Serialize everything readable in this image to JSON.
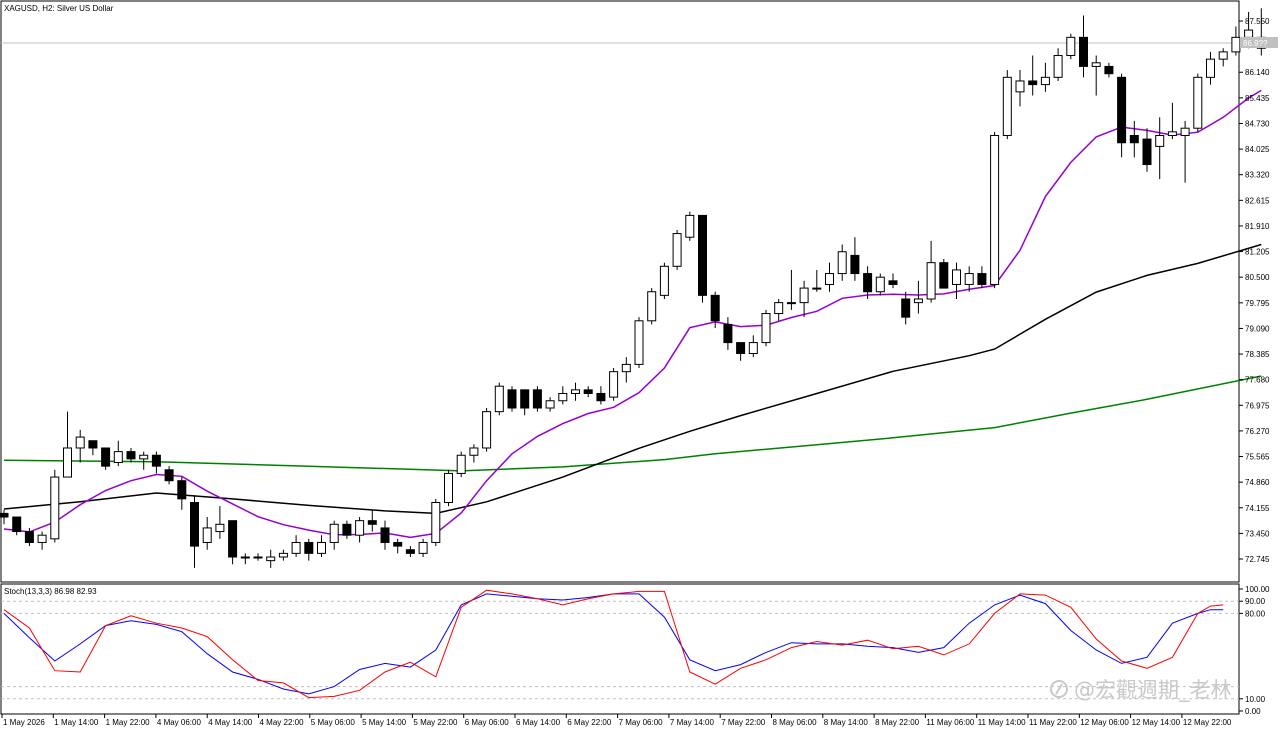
{
  "header": {
    "symbol_label": "XAGUSD, H2:  Silver US Dollar",
    "current_price_label": "86.9??"
  },
  "indicator": {
    "label": "Stoch(13,3,3) 86.98 82.93",
    "levels": [
      "100.00",
      "90.00",
      "80.00",
      "10.00",
      "0.00"
    ]
  },
  "watermark": "@宏觀週期_老林",
  "colors": {
    "bull_body": "#ffffff",
    "bear_body": "#000000",
    "ma_fast": "#9400d3",
    "ma_mid": "#000000",
    "ma_slow": "#008000",
    "stoch_main": "#ff0000",
    "stoch_signal": "#0000ff"
  },
  "chart_data": {
    "type": "candlestick",
    "price_axis": {
      "ticks": [
        "87.550",
        "86.140",
        "85.435",
        "84.730",
        "84.025",
        "83.320",
        "82.615",
        "81.910",
        "81.205",
        "80.500",
        "79.795",
        "79.090",
        "78.385",
        "77.680",
        "76.975",
        "76.270",
        "75.565",
        "74.860",
        "74.155",
        "73.450",
        "72.745"
      ]
    },
    "time_axis": {
      "ticks": [
        "1 May 2026",
        "1 May 14:00",
        "1 May 22:00",
        "4 May 06:00",
        "4 May 14:00",
        "4 May 22:00",
        "5 May 06:00",
        "5 May 14:00",
        "5 May 22:00",
        "6 May 06:00",
        "6 May 14:00",
        "6 May 22:00",
        "7 May 06:00",
        "7 May 14:00",
        "7 May 22:00",
        "8 May 06:00",
        "8 May 14:00",
        "8 May 22:00",
        "11 May 06:00",
        "11 May 14:00",
        "11 May 22:00",
        "12 May 06:00",
        "12 May 14:00",
        "12 May 22:00"
      ]
    },
    "candles": [
      [
        74.0,
        74.1,
        73.7,
        73.9
      ],
      [
        73.9,
        73.9,
        73.4,
        73.5
      ],
      [
        73.5,
        73.6,
        73.1,
        73.2
      ],
      [
        73.2,
        73.5,
        73.0,
        73.4
      ],
      [
        73.3,
        75.2,
        73.2,
        75.0
      ],
      [
        75.0,
        76.8,
        75.0,
        75.8
      ],
      [
        75.8,
        76.3,
        75.4,
        76.1
      ],
      [
        76.0,
        76.0,
        75.6,
        75.8
      ],
      [
        75.8,
        75.8,
        75.2,
        75.3
      ],
      [
        75.4,
        76.0,
        75.3,
        75.7
      ],
      [
        75.7,
        75.8,
        75.4,
        75.5
      ],
      [
        75.5,
        75.7,
        75.2,
        75.6
      ],
      [
        75.6,
        75.7,
        75.1,
        75.3
      ],
      [
        75.2,
        75.3,
        74.8,
        74.9
      ],
      [
        74.9,
        75.0,
        74.1,
        74.4
      ],
      [
        74.3,
        74.5,
        72.5,
        73.1
      ],
      [
        73.2,
        73.9,
        73.0,
        73.6
      ],
      [
        73.5,
        74.2,
        73.3,
        73.7
      ],
      [
        73.8,
        73.8,
        72.6,
        72.8
      ],
      [
        72.8,
        72.9,
        72.6,
        72.8
      ],
      [
        72.8,
        72.9,
        72.7,
        72.8
      ],
      [
        72.7,
        73.0,
        72.5,
        72.8
      ],
      [
        72.8,
        73.0,
        72.7,
        72.9
      ],
      [
        72.9,
        73.4,
        72.8,
        73.2
      ],
      [
        73.2,
        73.3,
        72.7,
        72.9
      ],
      [
        72.9,
        73.4,
        72.8,
        73.2
      ],
      [
        73.2,
        73.8,
        73.0,
        73.7
      ],
      [
        73.7,
        73.8,
        73.3,
        73.4
      ],
      [
        73.4,
        73.9,
        73.2,
        73.8
      ],
      [
        73.8,
        74.1,
        73.5,
        73.7
      ],
      [
        73.6,
        73.8,
        73.0,
        73.2
      ],
      [
        73.2,
        73.3,
        72.9,
        73.1
      ],
      [
        73.0,
        73.1,
        72.8,
        72.9
      ],
      [
        72.9,
        73.3,
        72.8,
        73.2
      ],
      [
        73.2,
        74.4,
        73.1,
        74.3
      ],
      [
        74.3,
        75.2,
        74.2,
        75.1
      ],
      [
        75.1,
        75.7,
        75.0,
        75.6
      ],
      [
        75.6,
        75.9,
        75.4,
        75.8
      ],
      [
        75.8,
        76.9,
        75.7,
        76.8
      ],
      [
        76.8,
        77.6,
        76.7,
        77.5
      ],
      [
        77.4,
        77.5,
        76.8,
        76.9
      ],
      [
        77.4,
        77.4,
        76.7,
        76.9
      ],
      [
        77.4,
        77.5,
        76.8,
        76.9
      ],
      [
        76.9,
        77.2,
        76.8,
        77.1
      ],
      [
        77.1,
        77.5,
        77.0,
        77.3
      ],
      [
        77.3,
        77.6,
        77.1,
        77.4
      ],
      [
        77.4,
        77.5,
        77.2,
        77.3
      ],
      [
        77.3,
        77.5,
        77.0,
        77.1
      ],
      [
        77.2,
        78.0,
        77.1,
        77.9
      ],
      [
        77.9,
        78.3,
        77.6,
        78.1
      ],
      [
        78.1,
        79.4,
        78.0,
        79.3
      ],
      [
        79.3,
        80.2,
        79.2,
        80.1
      ],
      [
        80.0,
        80.9,
        79.9,
        80.8
      ],
      [
        80.8,
        81.8,
        80.7,
        81.7
      ],
      [
        81.6,
        82.3,
        81.5,
        82.2
      ],
      [
        82.2,
        82.2,
        79.8,
        80.0
      ],
      [
        80.0,
        80.1,
        79.1,
        79.3
      ],
      [
        79.2,
        79.4,
        78.5,
        78.7
      ],
      [
        78.7,
        78.7,
        78.2,
        78.4
      ],
      [
        78.4,
        78.9,
        78.3,
        78.7
      ],
      [
        78.7,
        79.6,
        78.6,
        79.5
      ],
      [
        79.5,
        79.9,
        79.3,
        79.8
      ],
      [
        79.8,
        80.7,
        79.6,
        79.8
      ],
      [
        79.8,
        80.4,
        79.4,
        80.2
      ],
      [
        80.2,
        80.7,
        80.1,
        80.2
      ],
      [
        80.3,
        80.9,
        80.1,
        80.6
      ],
      [
        80.6,
        81.4,
        80.4,
        81.2
      ],
      [
        81.1,
        81.6,
        80.4,
        80.6
      ],
      [
        80.6,
        80.8,
        79.9,
        80.1
      ],
      [
        80.1,
        80.6,
        80.0,
        80.5
      ],
      [
        80.4,
        80.6,
        80.2,
        80.3
      ],
      [
        79.9,
        80.1,
        79.2,
        79.4
      ],
      [
        79.8,
        80.4,
        79.5,
        79.9
      ],
      [
        79.9,
        81.5,
        79.8,
        80.9
      ],
      [
        80.9,
        81.0,
        80.2,
        80.2
      ],
      [
        80.3,
        80.9,
        79.9,
        80.7
      ],
      [
        80.3,
        80.8,
        80.1,
        80.6
      ],
      [
        80.6,
        80.8,
        80.2,
        80.3
      ],
      [
        80.3,
        84.5,
        80.2,
        84.4
      ],
      [
        84.4,
        86.2,
        84.3,
        86.0
      ],
      [
        85.6,
        86.2,
        85.2,
        85.9
      ],
      [
        85.9,
        86.6,
        85.5,
        85.8
      ],
      [
        85.8,
        86.4,
        85.6,
        86.0
      ],
      [
        86.0,
        86.8,
        85.9,
        86.6
      ],
      [
        86.6,
        87.2,
        86.5,
        87.1
      ],
      [
        87.1,
        87.7,
        86.0,
        86.3
      ],
      [
        86.3,
        86.6,
        85.5,
        86.4
      ],
      [
        86.3,
        86.4,
        86.0,
        86.1
      ],
      [
        86.0,
        86.1,
        83.8,
        84.2
      ],
      [
        84.4,
        84.8,
        83.8,
        84.2
      ],
      [
        84.3,
        84.6,
        83.4,
        83.6
      ],
      [
        84.1,
        84.9,
        83.2,
        84.4
      ],
      [
        84.4,
        85.3,
        84.3,
        84.5
      ],
      [
        84.4,
        84.8,
        83.1,
        84.6
      ],
      [
        84.6,
        86.1,
        84.5,
        86.0
      ],
      [
        86.0,
        86.7,
        85.8,
        86.5
      ],
      [
        86.5,
        86.8,
        86.3,
        86.7
      ],
      [
        86.7,
        87.4,
        86.6,
        87.1
      ],
      [
        87.1,
        87.8,
        86.8,
        87.3
      ],
      [
        87.1,
        87.9,
        86.6,
        86.8
      ]
    ],
    "ma_fast": [
      [
        0,
        73.57
      ],
      [
        2,
        73.49
      ],
      [
        4,
        73.76
      ],
      [
        6,
        74.24
      ],
      [
        8,
        74.63
      ],
      [
        10,
        74.9
      ],
      [
        12,
        75.07
      ],
      [
        14,
        75.02
      ],
      [
        16,
        74.61
      ],
      [
        18,
        74.26
      ],
      [
        20,
        73.91
      ],
      [
        22,
        73.69
      ],
      [
        24,
        73.54
      ],
      [
        26,
        73.41
      ],
      [
        28,
        73.42
      ],
      [
        30,
        73.46
      ],
      [
        32,
        73.34
      ],
      [
        34,
        73.45
      ],
      [
        36,
        74.01
      ],
      [
        38,
        74.9
      ],
      [
        40,
        75.64
      ],
      [
        42,
        76.12
      ],
      [
        44,
        76.47
      ],
      [
        46,
        76.75
      ],
      [
        48,
        76.92
      ],
      [
        50,
        77.32
      ],
      [
        52,
        78.0
      ],
      [
        54,
        79.11
      ],
      [
        56,
        79.27
      ],
      [
        58,
        79.14
      ],
      [
        60,
        79.18
      ],
      [
        62,
        79.39
      ],
      [
        64,
        79.56
      ],
      [
        66,
        79.92
      ],
      [
        68,
        80.01
      ],
      [
        70,
        80.03
      ],
      [
        72,
        80.01
      ],
      [
        74,
        80.04
      ],
      [
        76,
        80.17
      ],
      [
        78,
        80.27
      ],
      [
        80,
        81.24
      ],
      [
        82,
        82.72
      ],
      [
        84,
        83.66
      ],
      [
        86,
        84.36
      ],
      [
        88,
        84.63
      ],
      [
        90,
        84.54
      ],
      [
        92,
        84.41
      ],
      [
        94,
        84.49
      ],
      [
        96,
        84.9
      ],
      [
        98,
        85.43
      ],
      [
        99,
        85.64
      ]
    ],
    "ma_mid": [
      [
        0,
        74.12
      ],
      [
        6,
        74.32
      ],
      [
        12,
        74.56
      ],
      [
        18,
        74.4
      ],
      [
        24,
        74.22
      ],
      [
        30,
        74.07
      ],
      [
        34,
        74.0
      ],
      [
        38,
        74.32
      ],
      [
        44,
        75.0
      ],
      [
        50,
        75.79
      ],
      [
        54,
        76.26
      ],
      [
        58,
        76.69
      ],
      [
        64,
        77.3
      ],
      [
        70,
        77.91
      ],
      [
        76,
        78.34
      ],
      [
        78,
        78.52
      ],
      [
        82,
        79.34
      ],
      [
        86,
        80.09
      ],
      [
        90,
        80.55
      ],
      [
        94,
        80.88
      ],
      [
        99,
        81.4
      ]
    ],
    "ma_slow": [
      [
        0,
        75.46
      ],
      [
        12,
        75.42
      ],
      [
        24,
        75.3
      ],
      [
        36,
        75.17
      ],
      [
        44,
        75.28
      ],
      [
        52,
        75.48
      ],
      [
        56,
        75.64
      ],
      [
        64,
        75.89
      ],
      [
        70,
        76.08
      ],
      [
        78,
        76.36
      ],
      [
        84,
        76.76
      ],
      [
        90,
        77.14
      ],
      [
        99,
        77.78
      ]
    ],
    "stoch_main": [
      [
        0,
        83
      ],
      [
        2,
        68
      ],
      [
        4,
        33
      ],
      [
        6,
        32
      ],
      [
        8,
        70
      ],
      [
        10,
        78
      ],
      [
        12,
        72
      ],
      [
        14,
        68
      ],
      [
        16,
        61
      ],
      [
        18,
        42
      ],
      [
        20,
        25
      ],
      [
        22,
        23
      ],
      [
        24,
        11
      ],
      [
        26,
        12
      ],
      [
        28,
        17
      ],
      [
        30,
        32
      ],
      [
        32,
        40
      ],
      [
        34,
        28
      ],
      [
        36,
        85
      ],
      [
        38,
        99
      ],
      [
        40,
        96
      ],
      [
        42,
        92
      ],
      [
        44,
        87
      ],
      [
        46,
        92
      ],
      [
        48,
        96
      ],
      [
        50,
        98
      ],
      [
        52,
        98
      ],
      [
        54,
        32
      ],
      [
        56,
        22
      ],
      [
        58,
        35
      ],
      [
        60,
        42
      ],
      [
        62,
        52
      ],
      [
        64,
        57
      ],
      [
        66,
        54
      ],
      [
        68,
        58
      ],
      [
        70,
        51
      ],
      [
        72,
        53
      ],
      [
        74,
        46
      ],
      [
        76,
        55
      ],
      [
        78,
        80
      ],
      [
        80,
        96
      ],
      [
        82,
        95
      ],
      [
        84,
        85
      ],
      [
        86,
        59
      ],
      [
        88,
        41
      ],
      [
        90,
        35
      ],
      [
        92,
        44
      ],
      [
        94,
        80
      ],
      [
        95,
        86
      ],
      [
        96,
        87
      ]
    ],
    "stoch_signal": [
      [
        0,
        80
      ],
      [
        2,
        60
      ],
      [
        4,
        41
      ],
      [
        6,
        55
      ],
      [
        8,
        70
      ],
      [
        10,
        74
      ],
      [
        12,
        71
      ],
      [
        14,
        65
      ],
      [
        16,
        47
      ],
      [
        18,
        32
      ],
      [
        20,
        26
      ],
      [
        22,
        18
      ],
      [
        24,
        14
      ],
      [
        26,
        20
      ],
      [
        28,
        34
      ],
      [
        30,
        39
      ],
      [
        32,
        36
      ],
      [
        34,
        50
      ],
      [
        36,
        87
      ],
      [
        38,
        96
      ],
      [
        40,
        94
      ],
      [
        42,
        92
      ],
      [
        44,
        91
      ],
      [
        46,
        93
      ],
      [
        48,
        96
      ],
      [
        50,
        96
      ],
      [
        52,
        77
      ],
      [
        54,
        42
      ],
      [
        56,
        33
      ],
      [
        58,
        38
      ],
      [
        60,
        48
      ],
      [
        62,
        56
      ],
      [
        64,
        55
      ],
      [
        66,
        55
      ],
      [
        68,
        53
      ],
      [
        70,
        52
      ],
      [
        72,
        48
      ],
      [
        74,
        52
      ],
      [
        76,
        72
      ],
      [
        78,
        87
      ],
      [
        80,
        95
      ],
      [
        82,
        88
      ],
      [
        84,
        66
      ],
      [
        86,
        50
      ],
      [
        88,
        39
      ],
      [
        90,
        44
      ],
      [
        92,
        72
      ],
      [
        94,
        80
      ],
      [
        95,
        83
      ],
      [
        96,
        83
      ]
    ]
  }
}
